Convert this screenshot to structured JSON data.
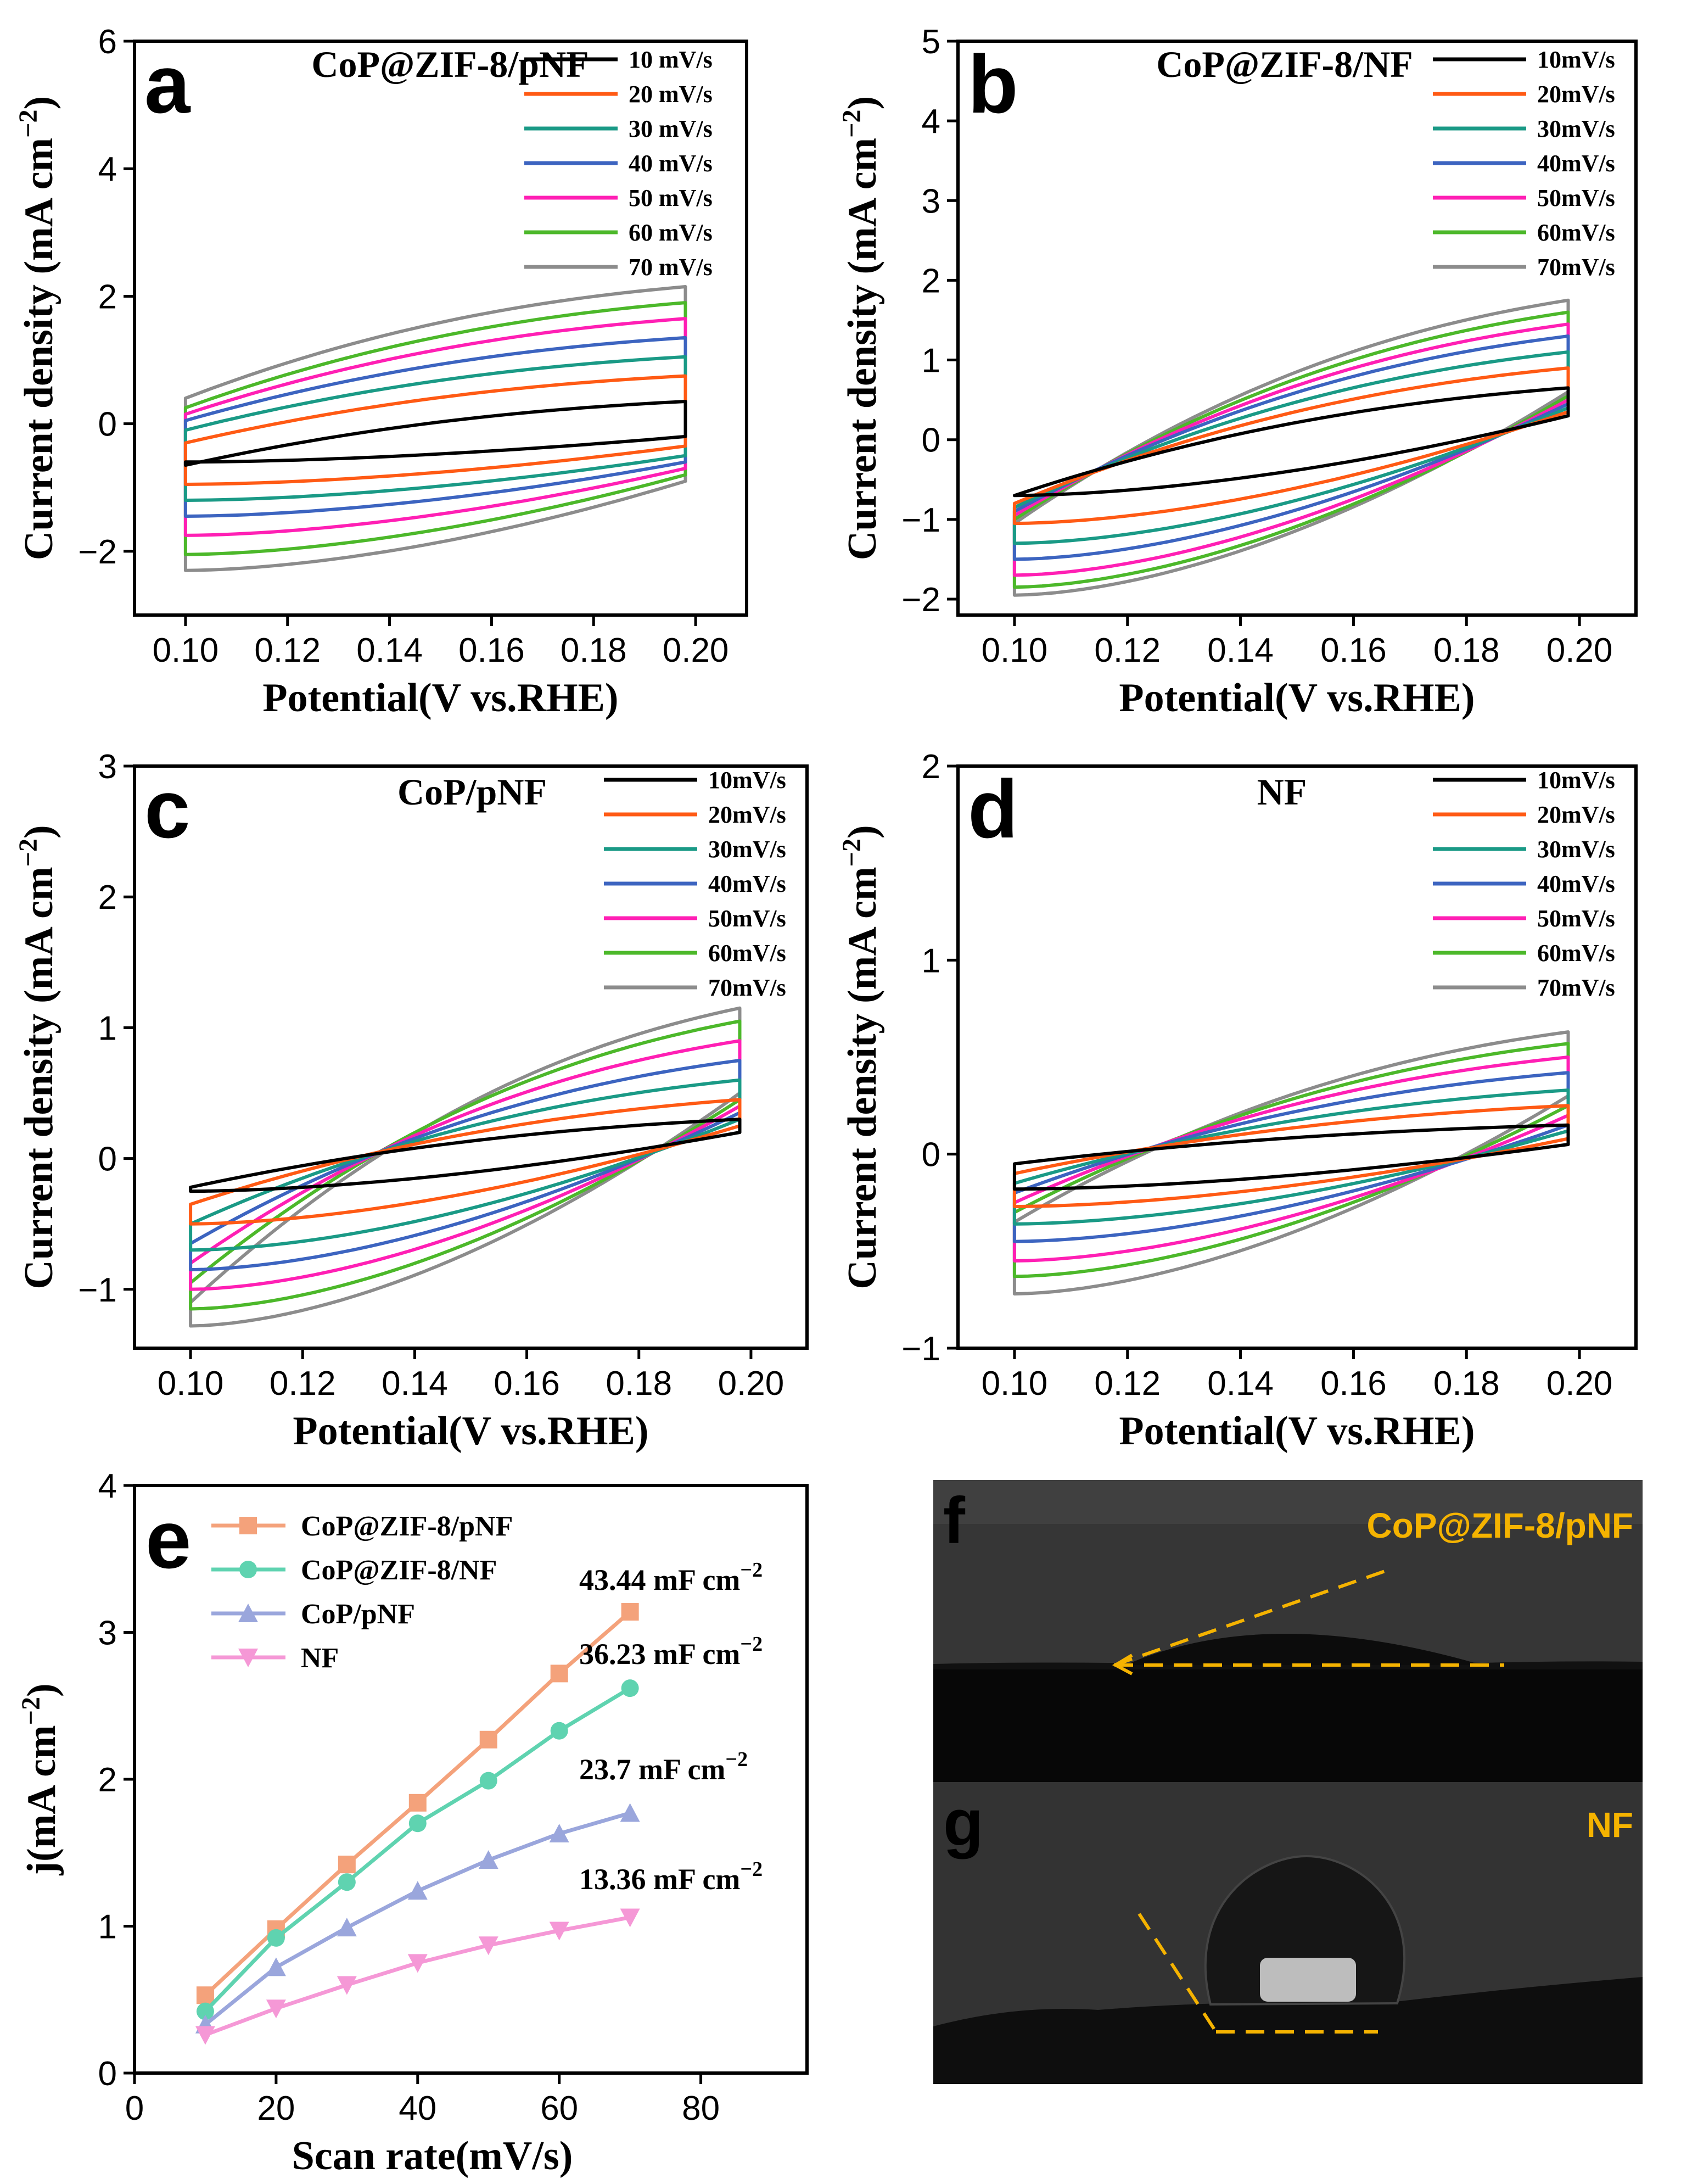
{
  "colors": {
    "series": [
      "#000000",
      "#ff5a14",
      "#1a9a86",
      "#3c64c0",
      "#ff1fb4",
      "#4cb82a",
      "#8c8c8c"
    ],
    "scan_series": [
      "#f4a27b",
      "#5fd3b0",
      "#9aa6dc",
      "#f598d6"
    ],
    "photo_label": "#f5b300",
    "photo_bg": "#2e2e2e"
  },
  "chart_data": [
    {
      "id": "a",
      "type": "line",
      "panel_label": "a",
      "title": "CoP@ZIF-8/pNF",
      "xlabel": "Potential(V vs.RHE)",
      "ylabel": "Current density (mA cm",
      "ylabel_sup": "−2",
      "ylabel_close": ")",
      "xlim": [
        0.09,
        0.21
      ],
      "ylim": [
        -3,
        6
      ],
      "xticks": [
        "0.10",
        "0.12",
        "0.14",
        "0.16",
        "0.18",
        "0.20"
      ],
      "yticks": [
        "−2",
        "0",
        "2",
        "4",
        "6"
      ],
      "legend": [
        "10 mV/s",
        "20 mV/s",
        "30 mV/s",
        "40 mV/s",
        "50 mV/s",
        "60 mV/s",
        "70 mV/s"
      ],
      "cv": {
        "v_start": 0.1,
        "v_end": 0.198,
        "top_start": [
          -0.65,
          -0.3,
          -0.1,
          0.05,
          0.15,
          0.25,
          0.4
        ],
        "top_end": [
          0.35,
          0.75,
          1.05,
          1.35,
          1.65,
          1.9,
          2.15
        ],
        "bottom_start": [
          -0.6,
          -0.95,
          -1.2,
          -1.45,
          -1.75,
          -2.05,
          -2.3
        ],
        "bottom_end": [
          -0.2,
          -0.35,
          -0.5,
          -0.6,
          -0.7,
          -0.8,
          -0.9
        ]
      }
    },
    {
      "id": "b",
      "type": "line",
      "panel_label": "b",
      "title": "CoP@ZIF-8/NF",
      "xlabel": "Potential(V vs.RHE)",
      "ylabel": "Current density (mA cm",
      "ylabel_sup": "−2",
      "ylabel_close": ")",
      "xlim": [
        0.09,
        0.21
      ],
      "ylim": [
        -2.2,
        5
      ],
      "xticks": [
        "0.10",
        "0.12",
        "0.14",
        "0.16",
        "0.18",
        "0.20"
      ],
      "yticks": [
        "−2",
        "−1",
        "0",
        "1",
        "2",
        "3",
        "4",
        "5"
      ],
      "legend": [
        "10mV/s",
        "20mV/s",
        "30mV/s",
        "40mV/s",
        "50mV/s",
        "60mV/s",
        "70mV/s"
      ],
      "cv": {
        "v_start": 0.1,
        "v_end": 0.198,
        "top_start": [
          -0.7,
          -0.8,
          -0.85,
          -0.9,
          -0.95,
          -1.0,
          -1.05
        ],
        "top_end": [
          0.65,
          0.9,
          1.1,
          1.3,
          1.45,
          1.6,
          1.75
        ],
        "bottom_start": [
          -0.7,
          -1.05,
          -1.3,
          -1.5,
          -1.7,
          -1.85,
          -1.95
        ],
        "bottom_end": [
          0.3,
          0.35,
          0.4,
          0.45,
          0.5,
          0.55,
          0.6
        ]
      }
    },
    {
      "id": "c",
      "type": "line",
      "panel_label": "c",
      "title": "CoP/pNF",
      "xlabel": "Potential(V vs.RHE)",
      "ylabel": "Current density (mA cm",
      "ylabel_sup": "−2",
      "ylabel_close": ")",
      "xlim": [
        0.09,
        0.21
      ],
      "ylim": [
        -1.45,
        3
      ],
      "xticks": [
        "0.10",
        "0.12",
        "0.14",
        "0.16",
        "0.18",
        "0.20"
      ],
      "yticks": [
        "−1",
        "0",
        "1",
        "2",
        "3"
      ],
      "legend": [
        "10mV/s",
        "20mV/s",
        "30mV/s",
        "40mV/s",
        "50mV/s",
        "60mV/s",
        "70mV/s"
      ],
      "cv": {
        "v_start": 0.1,
        "v_end": 0.198,
        "top_start": [
          -0.22,
          -0.35,
          -0.5,
          -0.65,
          -0.8,
          -0.95,
          -1.1
        ],
        "top_end": [
          0.3,
          0.45,
          0.6,
          0.75,
          0.9,
          1.05,
          1.15
        ],
        "bottom_start": [
          -0.25,
          -0.5,
          -0.7,
          -0.85,
          -1.0,
          -1.15,
          -1.28
        ],
        "bottom_end": [
          0.2,
          0.25,
          0.3,
          0.35,
          0.4,
          0.45,
          0.5
        ]
      }
    },
    {
      "id": "d",
      "type": "line",
      "panel_label": "d",
      "title": "NF",
      "xlabel": "Potential(V vs.RHE)",
      "ylabel": "Current density (mA cm",
      "ylabel_sup": "−2",
      "ylabel_close": ")",
      "xlim": [
        0.09,
        0.21
      ],
      "ylim": [
        -1,
        2
      ],
      "xticks": [
        "0.10",
        "0.12",
        "0.14",
        "0.16",
        "0.18",
        "0.20"
      ],
      "yticks": [
        "−1",
        "0",
        "1",
        "2"
      ],
      "legend": [
        "10mV/s",
        "20mV/s",
        "30mV/s",
        "40mV/s",
        "50mV/s",
        "60mV/s",
        "70mV/s"
      ],
      "cv": {
        "v_start": 0.1,
        "v_end": 0.198,
        "top_start": [
          -0.05,
          -0.1,
          -0.15,
          -0.2,
          -0.25,
          -0.3,
          -0.35
        ],
        "top_end": [
          0.15,
          0.25,
          0.33,
          0.42,
          0.5,
          0.57,
          0.63
        ],
        "bottom_start": [
          -0.18,
          -0.27,
          -0.36,
          -0.45,
          -0.55,
          -0.63,
          -0.72
        ],
        "bottom_end": [
          0.05,
          0.08,
          0.12,
          0.15,
          0.2,
          0.25,
          0.3
        ]
      }
    },
    {
      "id": "e",
      "type": "line",
      "panel_label": "e",
      "xlabel": "Scan rate(mV/s)",
      "ylabel": "j(mA cm",
      "ylabel_sup": "−2",
      "ylabel_close": ")",
      "xlim": [
        0,
        95
      ],
      "ylim": [
        0,
        4
      ],
      "xticks": [
        "0",
        "20",
        "40",
        "60",
        "80"
      ],
      "yticks": [
        "0",
        "1",
        "2",
        "3",
        "4"
      ],
      "x": [
        10,
        20,
        30,
        40,
        50,
        60,
        70
      ],
      "series": [
        {
          "name": "CoP@ZIF-8/pNF",
          "marker": "square",
          "values": [
            0.53,
            0.98,
            1.42,
            1.84,
            2.27,
            2.72,
            3.14
          ],
          "annotation": "43.44 mF cm",
          "annotation_sup": "−2"
        },
        {
          "name": "CoP@ZIF-8/NF",
          "marker": "circle",
          "values": [
            0.42,
            0.92,
            1.3,
            1.7,
            1.99,
            2.33,
            2.62
          ],
          "annotation": "36.23 mF cm",
          "annotation_sup": "−2"
        },
        {
          "name": "CoP/pNF",
          "marker": "triangle",
          "values": [
            0.33,
            0.72,
            0.99,
            1.24,
            1.45,
            1.63,
            1.77
          ],
          "annotation": "23.7 mF cm",
          "annotation_sup": "−2"
        },
        {
          "name": "NF",
          "marker": "triangle-down",
          "values": [
            0.26,
            0.44,
            0.6,
            0.75,
            0.87,
            0.97,
            1.06
          ],
          "annotation": "13.36 mF cm",
          "annotation_sup": "−2"
        }
      ]
    }
  ],
  "photos": {
    "f": {
      "letter": "f",
      "label": "CoP@ZIF-8/pNF"
    },
    "g": {
      "letter": "g",
      "label": "NF"
    }
  }
}
